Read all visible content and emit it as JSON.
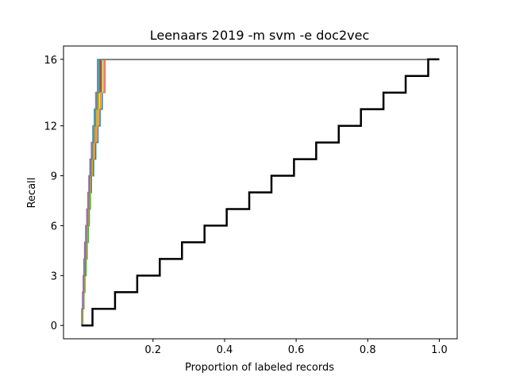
{
  "chart_data": {
    "type": "line",
    "title": "Leenaars 2019 -m svm -e doc2vec",
    "xlabel": "Proportion of labeled records",
    "ylabel": "Recall",
    "xlim": [
      -0.05,
      1.05
    ],
    "ylim": [
      -0.8,
      16.8
    ],
    "xticks": [
      0.2,
      0.4,
      0.6,
      0.8,
      1.0
    ],
    "xtick_labels": [
      "0.2",
      "0.4",
      "0.6",
      "0.8",
      "1.0"
    ],
    "yticks": [
      0,
      3,
      6,
      9,
      12,
      16
    ],
    "ytick_labels": [
      "0",
      "3",
      "6",
      "9",
      "12",
      "16"
    ],
    "grid": false,
    "series": [
      {
        "color": "#000000",
        "x": [
          0.0,
          0.031,
          0.094,
          0.156,
          0.219,
          0.281,
          0.344,
          0.406,
          0.469,
          0.531,
          0.594,
          0.656,
          0.719,
          0.781,
          0.844,
          0.906,
          0.969,
          1.0
        ],
        "y": [
          0,
          1,
          2,
          3,
          4,
          5,
          6,
          7,
          8,
          9,
          10,
          11,
          12,
          13,
          14,
          15,
          16,
          16
        ]
      },
      {
        "color": "#1f77b4",
        "x": [
          0.0,
          0.003,
          0.006,
          0.009,
          0.012,
          0.015,
          0.018,
          0.021,
          0.024,
          0.028,
          0.034,
          0.04,
          0.046,
          0.052,
          0.058,
          0.064,
          1.0
        ],
        "y": [
          0,
          1,
          2,
          3,
          4,
          5,
          6,
          7,
          8,
          9,
          10,
          11,
          12,
          13,
          14,
          16,
          16
        ]
      },
      {
        "color": "#ff7f0e",
        "x": [
          0.0,
          0.002,
          0.005,
          0.008,
          0.011,
          0.013,
          0.016,
          0.019,
          0.022,
          0.026,
          0.031,
          0.036,
          0.041,
          0.047,
          0.053,
          0.066,
          1.0
        ],
        "y": [
          0,
          1,
          2,
          3,
          4,
          5,
          6,
          7,
          8,
          9,
          10,
          11,
          12,
          13,
          14,
          16,
          16
        ]
      },
      {
        "color": "#2ca02c",
        "x": [
          0.0,
          0.004,
          0.007,
          0.01,
          0.013,
          0.016,
          0.019,
          0.022,
          0.025,
          0.027,
          0.029,
          0.031,
          0.034,
          0.038,
          0.042,
          0.049,
          1.0
        ],
        "y": [
          0,
          1,
          2,
          3,
          4,
          5,
          6,
          7,
          8,
          9,
          10,
          11,
          12,
          13,
          14,
          16,
          16
        ]
      },
      {
        "color": "#d62728",
        "x": [
          0.0,
          0.002,
          0.004,
          0.006,
          0.008,
          0.011,
          0.014,
          0.017,
          0.02,
          0.023,
          0.027,
          0.031,
          0.035,
          0.039,
          0.044,
          0.055,
          1.0
        ],
        "y": [
          0,
          1,
          2,
          3,
          4,
          5,
          6,
          7,
          8,
          9,
          10,
          11,
          12,
          13,
          14,
          16,
          16
        ]
      },
      {
        "color": "#9467bd",
        "x": [
          0.0,
          0.001,
          0.003,
          0.005,
          0.007,
          0.009,
          0.012,
          0.015,
          0.018,
          0.021,
          0.024,
          0.028,
          0.032,
          0.036,
          0.04,
          0.045,
          1.0
        ],
        "y": [
          0,
          1,
          2,
          3,
          4,
          5,
          6,
          7,
          8,
          9,
          10,
          11,
          12,
          13,
          14,
          16,
          16
        ]
      },
      {
        "color": "#8c564b",
        "x": [
          0.0,
          0.003,
          0.005,
          0.007,
          0.009,
          0.012,
          0.015,
          0.018,
          0.021,
          0.025,
          0.029,
          0.033,
          0.037,
          0.041,
          0.046,
          0.052,
          1.0
        ],
        "y": [
          0,
          1,
          2,
          3,
          4,
          5,
          6,
          7,
          8,
          9,
          10,
          11,
          12,
          13,
          14,
          16,
          16
        ]
      },
      {
        "color": "#e377c2",
        "x": [
          0.0,
          0.002,
          0.004,
          0.006,
          0.009,
          0.012,
          0.014,
          0.017,
          0.02,
          0.024,
          0.028,
          0.032,
          0.036,
          0.04,
          0.044,
          0.063,
          1.0
        ],
        "y": [
          0,
          1,
          2,
          3,
          4,
          5,
          6,
          7,
          8,
          9,
          10,
          11,
          12,
          13,
          14,
          16,
          16
        ]
      },
      {
        "color": "#17becf",
        "x": [
          0.0,
          0.003,
          0.006,
          0.008,
          0.01,
          0.013,
          0.016,
          0.019,
          0.022,
          0.025,
          0.028,
          0.03,
          0.033,
          0.037,
          0.041,
          0.047,
          1.0
        ],
        "y": [
          0,
          1,
          2,
          3,
          4,
          5,
          6,
          7,
          8,
          9,
          10,
          11,
          12,
          13,
          14,
          16,
          16
        ]
      },
      {
        "color": "#bcbd22",
        "x": [
          0.0,
          0.004,
          0.006,
          0.009,
          0.011,
          0.014,
          0.017,
          0.02,
          0.023,
          0.026,
          0.03,
          0.034,
          0.038,
          0.043,
          0.048,
          0.058,
          1.0
        ],
        "y": [
          0,
          1,
          2,
          3,
          4,
          5,
          6,
          7,
          8,
          9,
          10,
          11,
          12,
          13,
          14,
          16,
          16
        ]
      },
      {
        "color": "#7f7f7f",
        "x": [
          0.0,
          0.002,
          0.005,
          0.007,
          0.01,
          0.012,
          0.015,
          0.018,
          0.021,
          0.024,
          0.027,
          0.031,
          0.035,
          0.039,
          0.043,
          0.05,
          1.0
        ],
        "y": [
          0,
          1,
          2,
          3,
          4,
          5,
          6,
          7,
          8,
          9,
          10,
          11,
          12,
          13,
          14,
          16,
          16
        ]
      }
    ]
  }
}
